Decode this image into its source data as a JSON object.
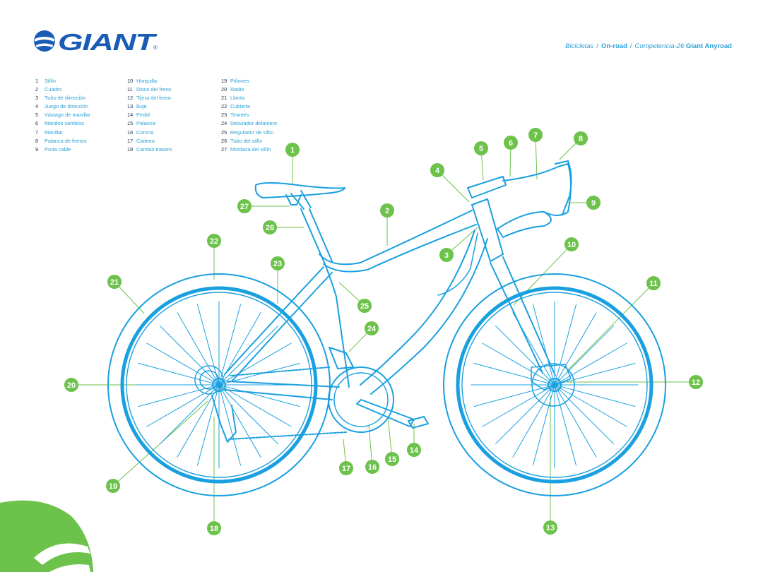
{
  "brand": {
    "name": "GIANT",
    "trademark": "®"
  },
  "breadcrumb": {
    "crumb1": "Bicicletas",
    "crumb2": "On-road",
    "crumb3": "Competencia-26",
    "crumb4": "Giant Anyroad",
    "separator": "/"
  },
  "legend": [
    {
      "num": "1",
      "label": "Sillín"
    },
    {
      "num": "2",
      "label": "Cuadro"
    },
    {
      "num": "3",
      "label": "Tubo de dirección"
    },
    {
      "num": "4",
      "label": "Juego de dirección"
    },
    {
      "num": "5",
      "label": "Vástago de manillar"
    },
    {
      "num": "6",
      "label": "Mandos cambios"
    },
    {
      "num": "7",
      "label": "Manillar"
    },
    {
      "num": "8",
      "label": "Palanca de frenos"
    },
    {
      "num": "9",
      "label": "Porta cable"
    },
    {
      "num": "10",
      "label": "Horquilla"
    },
    {
      "num": "11",
      "label": "Disco del freno"
    },
    {
      "num": "12",
      "label": "Tijera del freno"
    },
    {
      "num": "13",
      "label": "Buje"
    },
    {
      "num": "14",
      "label": "Pedal"
    },
    {
      "num": "15",
      "label": "Palanca"
    },
    {
      "num": "16",
      "label": "Corona"
    },
    {
      "num": "17",
      "label": "Cadena"
    },
    {
      "num": "18",
      "label": "Cambio trasero"
    },
    {
      "num": "19",
      "label": "Piñones"
    },
    {
      "num": "20",
      "label": "Radio"
    },
    {
      "num": "21",
      "label": "Llanta"
    },
    {
      "num": "22",
      "label": "Cubierta"
    },
    {
      "num": "23",
      "label": "Tirantes"
    },
    {
      "num": "24",
      "label": "Desviador delantero"
    },
    {
      "num": "25",
      "label": "Regulador de sillín"
    },
    {
      "num": "26",
      "label": "Tubo del sillín"
    },
    {
      "num": "27",
      "label": "Mordaza del sillín"
    }
  ],
  "colors": {
    "bike_line": "#1aa0e0",
    "badge": "#6cc24a",
    "legend_number": "#1f2e4a",
    "legend_label": "#2aa3d8",
    "logo_blue": "#1a5bb5"
  }
}
